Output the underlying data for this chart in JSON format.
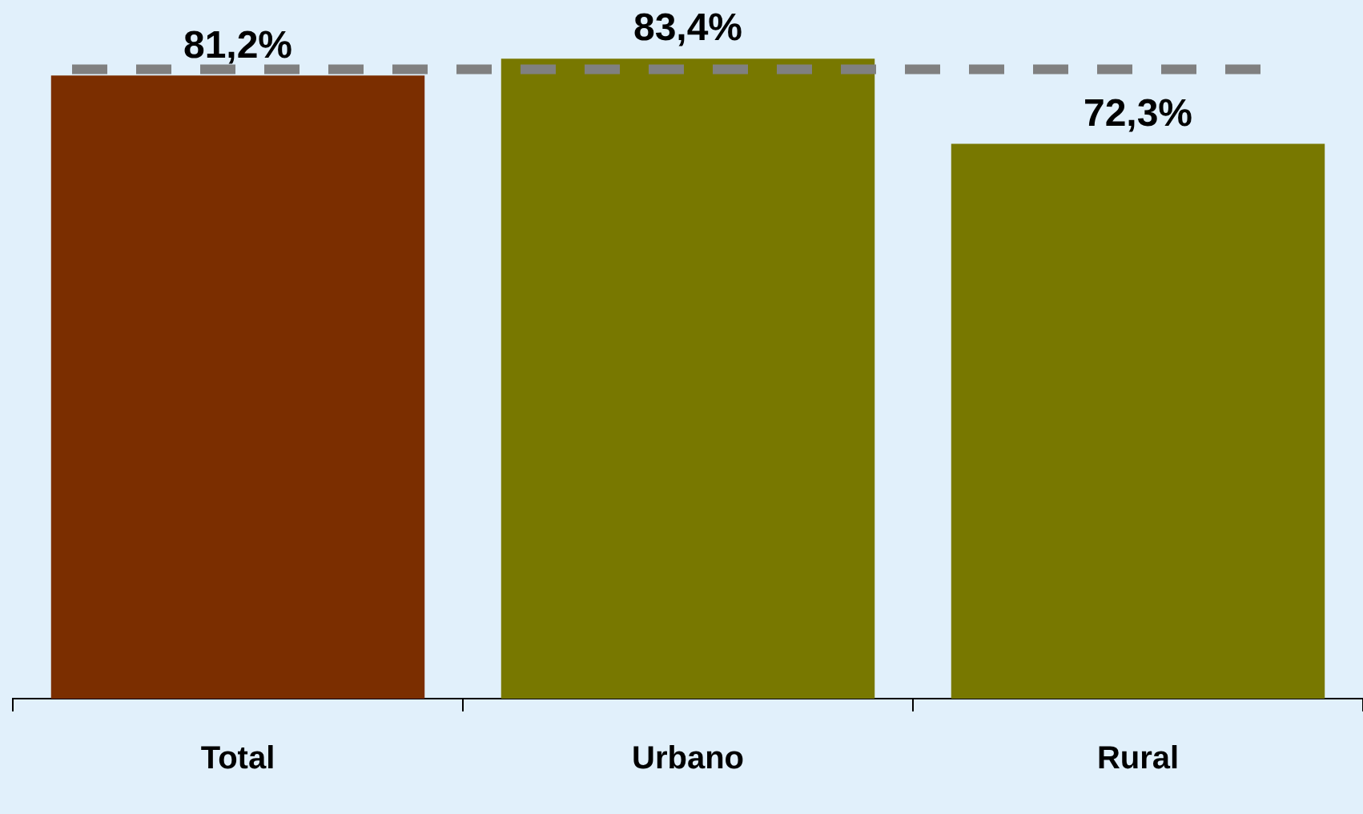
{
  "chart_data": {
    "type": "bar",
    "categories": [
      "Total",
      "Urbano",
      "Rural"
    ],
    "values": [
      81.2,
      83.4,
      72.3
    ],
    "colors": [
      "#7b2e00",
      "#787800",
      "#787800"
    ],
    "value_labels": [
      "81,2%",
      "83,4%",
      "72,3%"
    ],
    "tick_labels": "x",
    "grid": false,
    "legend": false,
    "ref_lines": [
      {
        "axis": "y",
        "value": 82,
        "label": null,
        "color": "#808080",
        "line_style": "dashed"
      }
    ]
  }
}
